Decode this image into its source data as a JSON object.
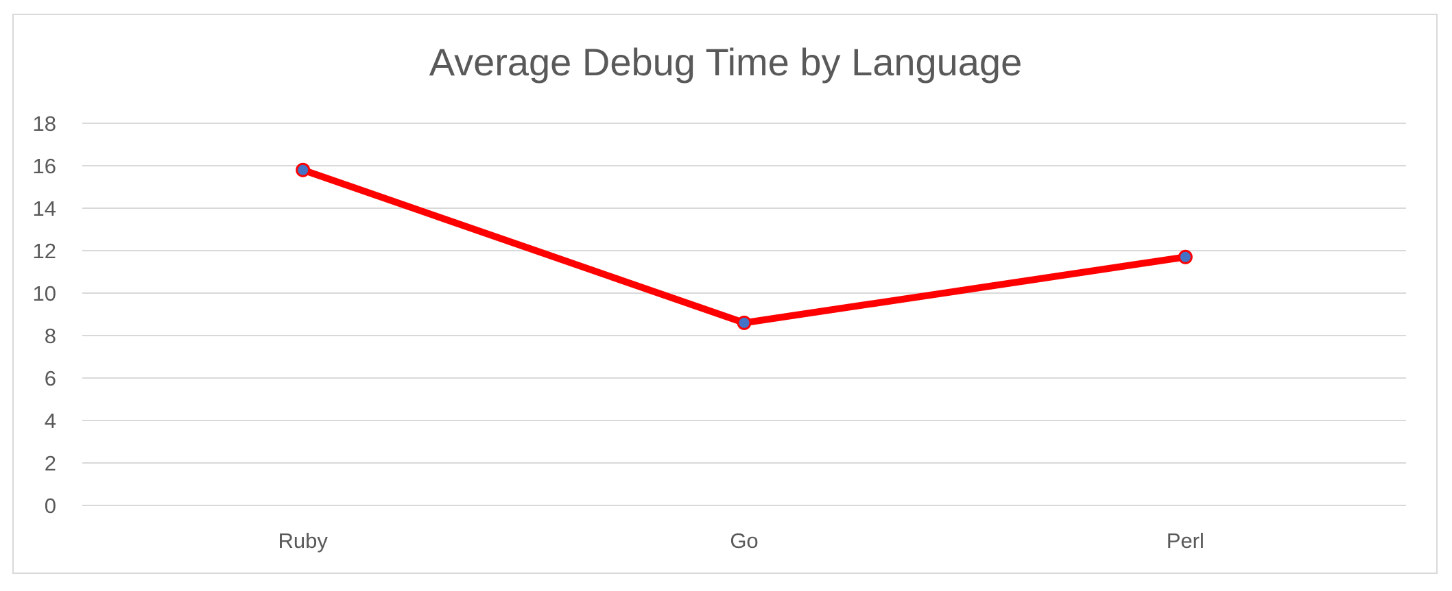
{
  "chart_data": {
    "type": "line",
    "title": "Average Debug Time by Language",
    "xlabel": "",
    "ylabel": "",
    "categories": [
      "Ruby",
      "Go",
      "Perl"
    ],
    "series": [
      {
        "values": [
          15.8,
          8.6,
          11.7
        ]
      }
    ],
    "ylim": [
      0,
      18
    ],
    "yticks": [
      0,
      2,
      4,
      6,
      8,
      10,
      12,
      14,
      16,
      18
    ],
    "grid": true,
    "legend": "none",
    "colors": {
      "line": "#ff0000",
      "marker_fill": "#4472c4",
      "marker_edge": "#ff0000",
      "grid": "#d9d9d9",
      "text": "#595959"
    }
  }
}
